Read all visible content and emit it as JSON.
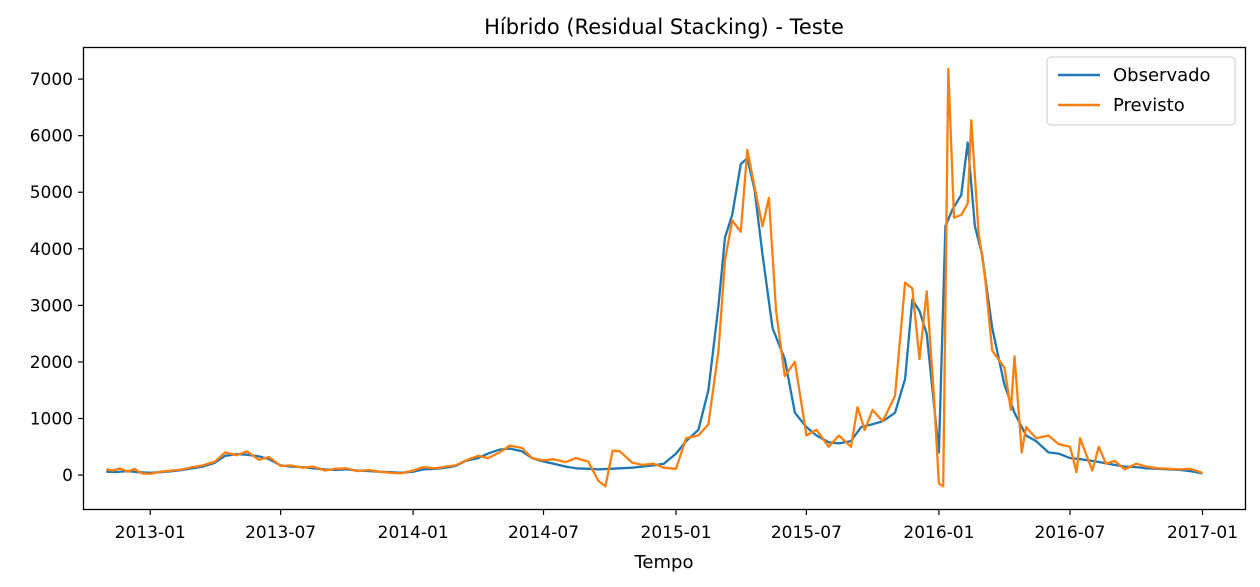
{
  "chart_data": {
    "type": "line",
    "title": "Híbrido (Residual Stacking) - Teste",
    "xlabel": "Tempo",
    "ylabel": "",
    "x_axis_type": "date",
    "xlim": [
      "2012-10-01",
      "2017-03-01"
    ],
    "ylim": [
      -600,
      7550
    ],
    "x_ticks": [
      "2013-01",
      "2013-07",
      "2014-01",
      "2014-07",
      "2015-01",
      "2015-07",
      "2016-01",
      "2016-07",
      "2017-01"
    ],
    "y_ticks": [
      0,
      1000,
      2000,
      3000,
      4000,
      5000,
      6000,
      7000
    ],
    "grid": false,
    "legend": {
      "position": "top-right"
    },
    "colors": {
      "Observado": "#1f77b4",
      "Previsto": "#ff7f0e"
    },
    "series": [
      {
        "name": "Observado",
        "color": "#1f77b4",
        "points": [
          [
            "2012-11-01",
            60
          ],
          [
            "2012-11-15",
            55
          ],
          [
            "2012-12-01",
            70
          ],
          [
            "2012-12-15",
            50
          ],
          [
            "2013-01-01",
            40
          ],
          [
            "2013-01-15",
            50
          ],
          [
            "2013-02-01",
            70
          ],
          [
            "2013-02-15",
            90
          ],
          [
            "2013-03-01",
            120
          ],
          [
            "2013-03-15",
            150
          ],
          [
            "2013-04-01",
            220
          ],
          [
            "2013-04-15",
            340
          ],
          [
            "2013-05-01",
            370
          ],
          [
            "2013-05-15",
            360
          ],
          [
            "2013-06-01",
            330
          ],
          [
            "2013-06-15",
            280
          ],
          [
            "2013-07-01",
            170
          ],
          [
            "2013-07-15",
            150
          ],
          [
            "2013-08-01",
            140
          ],
          [
            "2013-08-15",
            120
          ],
          [
            "2013-09-01",
            100
          ],
          [
            "2013-09-15",
            90
          ],
          [
            "2013-10-01",
            100
          ],
          [
            "2013-10-15",
            80
          ],
          [
            "2013-11-01",
            70
          ],
          [
            "2013-11-15",
            60
          ],
          [
            "2013-12-01",
            50
          ],
          [
            "2013-12-15",
            40
          ],
          [
            "2014-01-01",
            60
          ],
          [
            "2014-01-15",
            100
          ],
          [
            "2014-02-01",
            110
          ],
          [
            "2014-02-15",
            130
          ],
          [
            "2014-03-01",
            160
          ],
          [
            "2014-03-15",
            250
          ],
          [
            "2014-04-01",
            300
          ],
          [
            "2014-04-15",
            380
          ],
          [
            "2014-05-01",
            450
          ],
          [
            "2014-05-15",
            470
          ],
          [
            "2014-06-01",
            420
          ],
          [
            "2014-06-15",
            300
          ],
          [
            "2014-07-01",
            240
          ],
          [
            "2014-07-15",
            200
          ],
          [
            "2014-08-01",
            150
          ],
          [
            "2014-08-15",
            120
          ],
          [
            "2014-09-01",
            110
          ],
          [
            "2014-09-15",
            100
          ],
          [
            "2014-10-01",
            110
          ],
          [
            "2014-10-15",
            120
          ],
          [
            "2014-11-01",
            130
          ],
          [
            "2014-11-15",
            150
          ],
          [
            "2014-12-01",
            170
          ],
          [
            "2014-12-15",
            200
          ],
          [
            "2015-01-01",
            380
          ],
          [
            "2015-01-15",
            600
          ],
          [
            "2015-02-01",
            800
          ],
          [
            "2015-02-15",
            1500
          ],
          [
            "2015-03-01",
            3000
          ],
          [
            "2015-03-10",
            4200
          ],
          [
            "2015-03-20",
            4600
          ],
          [
            "2015-04-01",
            5500
          ],
          [
            "2015-04-10",
            5600
          ],
          [
            "2015-04-20",
            5050
          ],
          [
            "2015-05-01",
            3900
          ],
          [
            "2015-05-15",
            2600
          ],
          [
            "2015-06-01",
            2050
          ],
          [
            "2015-06-15",
            1100
          ],
          [
            "2015-07-01",
            850
          ],
          [
            "2015-07-15",
            700
          ],
          [
            "2015-08-01",
            580
          ],
          [
            "2015-08-15",
            560
          ],
          [
            "2015-09-01",
            600
          ],
          [
            "2015-09-15",
            850
          ],
          [
            "2015-10-01",
            900
          ],
          [
            "2015-10-15",
            950
          ],
          [
            "2015-11-01",
            1100
          ],
          [
            "2015-11-15",
            1700
          ],
          [
            "2015-11-25",
            3100
          ],
          [
            "2015-12-05",
            2900
          ],
          [
            "2015-12-15",
            2500
          ],
          [
            "2016-01-01",
            400
          ],
          [
            "2016-01-10",
            4400
          ],
          [
            "2016-01-20",
            4700
          ],
          [
            "2016-02-01",
            4950
          ],
          [
            "2016-02-10",
            5880
          ],
          [
            "2016-02-20",
            4400
          ],
          [
            "2016-03-01",
            3900
          ],
          [
            "2016-03-15",
            2600
          ],
          [
            "2016-04-01",
            1600
          ],
          [
            "2016-04-15",
            1100
          ],
          [
            "2016-05-01",
            700
          ],
          [
            "2016-05-15",
            600
          ],
          [
            "2016-06-01",
            400
          ],
          [
            "2016-06-15",
            380
          ],
          [
            "2016-07-01",
            300
          ],
          [
            "2016-07-15",
            280
          ],
          [
            "2016-08-01",
            250
          ],
          [
            "2016-08-15",
            220
          ],
          [
            "2016-09-01",
            180
          ],
          [
            "2016-09-15",
            150
          ],
          [
            "2016-10-01",
            140
          ],
          [
            "2016-10-15",
            120
          ],
          [
            "2016-11-01",
            110
          ],
          [
            "2016-11-15",
            100
          ],
          [
            "2016-12-01",
            90
          ],
          [
            "2016-12-15",
            70
          ],
          [
            "2017-01-01",
            30
          ]
        ]
      },
      {
        "name": "Previsto",
        "color": "#ff7f0e",
        "points": [
          [
            "2012-11-01",
            100
          ],
          [
            "2012-11-10",
            80
          ],
          [
            "2012-11-20",
            120
          ],
          [
            "2012-12-01",
            60
          ],
          [
            "2012-12-10",
            110
          ],
          [
            "2012-12-20",
            30
          ],
          [
            "2013-01-01",
            20
          ],
          [
            "2013-01-15",
            60
          ],
          [
            "2013-02-01",
            80
          ],
          [
            "2013-02-15",
            100
          ],
          [
            "2013-03-01",
            140
          ],
          [
            "2013-03-15",
            170
          ],
          [
            "2013-04-01",
            240
          ],
          [
            "2013-04-15",
            400
          ],
          [
            "2013-05-01",
            350
          ],
          [
            "2013-05-15",
            420
          ],
          [
            "2013-06-01",
            270
          ],
          [
            "2013-06-15",
            320
          ],
          [
            "2013-07-01",
            160
          ],
          [
            "2013-07-15",
            170
          ],
          [
            "2013-08-01",
            130
          ],
          [
            "2013-08-15",
            150
          ],
          [
            "2013-09-01",
            80
          ],
          [
            "2013-09-15",
            110
          ],
          [
            "2013-10-01",
            120
          ],
          [
            "2013-10-15",
            70
          ],
          [
            "2013-11-01",
            90
          ],
          [
            "2013-11-15",
            60
          ],
          [
            "2013-12-01",
            40
          ],
          [
            "2013-12-15",
            30
          ],
          [
            "2014-01-01",
            80
          ],
          [
            "2014-01-15",
            140
          ],
          [
            "2014-02-01",
            120
          ],
          [
            "2014-02-15",
            150
          ],
          [
            "2014-03-01",
            170
          ],
          [
            "2014-03-15",
            260
          ],
          [
            "2014-04-01",
            340
          ],
          [
            "2014-04-15",
            300
          ],
          [
            "2014-05-01",
            400
          ],
          [
            "2014-05-15",
            520
          ],
          [
            "2014-06-01",
            480
          ],
          [
            "2014-06-15",
            300
          ],
          [
            "2014-07-01",
            260
          ],
          [
            "2014-07-15",
            280
          ],
          [
            "2014-08-01",
            230
          ],
          [
            "2014-08-15",
            300
          ],
          [
            "2014-09-01",
            240
          ],
          [
            "2014-09-15",
            -100
          ],
          [
            "2014-09-25",
            -200
          ],
          [
            "2014-10-05",
            430
          ],
          [
            "2014-10-15",
            420
          ],
          [
            "2014-11-01",
            220
          ],
          [
            "2014-11-15",
            180
          ],
          [
            "2014-12-01",
            200
          ],
          [
            "2014-12-15",
            130
          ],
          [
            "2015-01-01",
            110
          ],
          [
            "2015-01-15",
            650
          ],
          [
            "2015-02-01",
            700
          ],
          [
            "2015-02-15",
            900
          ],
          [
            "2015-03-01",
            2200
          ],
          [
            "2015-03-10",
            3800
          ],
          [
            "2015-03-20",
            4500
          ],
          [
            "2015-04-01",
            4300
          ],
          [
            "2015-04-10",
            5750
          ],
          [
            "2015-04-20",
            5100
          ],
          [
            "2015-05-01",
            4400
          ],
          [
            "2015-05-10",
            4900
          ],
          [
            "2015-05-20",
            2900
          ],
          [
            "2015-06-01",
            1750
          ],
          [
            "2015-06-15",
            2000
          ],
          [
            "2015-07-01",
            700
          ],
          [
            "2015-07-15",
            800
          ],
          [
            "2015-08-01",
            500
          ],
          [
            "2015-08-15",
            700
          ],
          [
            "2015-09-01",
            500
          ],
          [
            "2015-09-10",
            1200
          ],
          [
            "2015-09-20",
            800
          ],
          [
            "2015-10-01",
            1150
          ],
          [
            "2015-10-15",
            950
          ],
          [
            "2015-11-01",
            1400
          ],
          [
            "2015-11-15",
            3400
          ],
          [
            "2015-11-25",
            3300
          ],
          [
            "2015-12-05",
            2050
          ],
          [
            "2015-12-15",
            3250
          ],
          [
            "2015-12-25",
            1400
          ],
          [
            "2016-01-01",
            -150
          ],
          [
            "2016-01-07",
            -200
          ],
          [
            "2016-01-14",
            7180
          ],
          [
            "2016-01-22",
            4550
          ],
          [
            "2016-02-01",
            4600
          ],
          [
            "2016-02-10",
            4800
          ],
          [
            "2016-02-15",
            6270
          ],
          [
            "2016-02-25",
            4300
          ],
          [
            "2016-03-05",
            3500
          ],
          [
            "2016-03-15",
            2200
          ],
          [
            "2016-04-01",
            1900
          ],
          [
            "2016-04-10",
            1150
          ],
          [
            "2016-04-15",
            2100
          ],
          [
            "2016-04-25",
            400
          ],
          [
            "2016-05-01",
            850
          ],
          [
            "2016-05-15",
            650
          ],
          [
            "2016-06-01",
            700
          ],
          [
            "2016-06-15",
            550
          ],
          [
            "2016-07-01",
            500
          ],
          [
            "2016-07-10",
            50
          ],
          [
            "2016-07-15",
            650
          ],
          [
            "2016-08-01",
            80
          ],
          [
            "2016-08-10",
            500
          ],
          [
            "2016-08-20",
            200
          ],
          [
            "2016-09-01",
            250
          ],
          [
            "2016-09-15",
            100
          ],
          [
            "2016-10-01",
            200
          ],
          [
            "2016-10-15",
            150
          ],
          [
            "2016-11-01",
            120
          ],
          [
            "2016-11-15",
            110
          ],
          [
            "2016-12-01",
            100
          ],
          [
            "2016-12-15",
            110
          ],
          [
            "2017-01-01",
            40
          ]
        ]
      }
    ]
  }
}
